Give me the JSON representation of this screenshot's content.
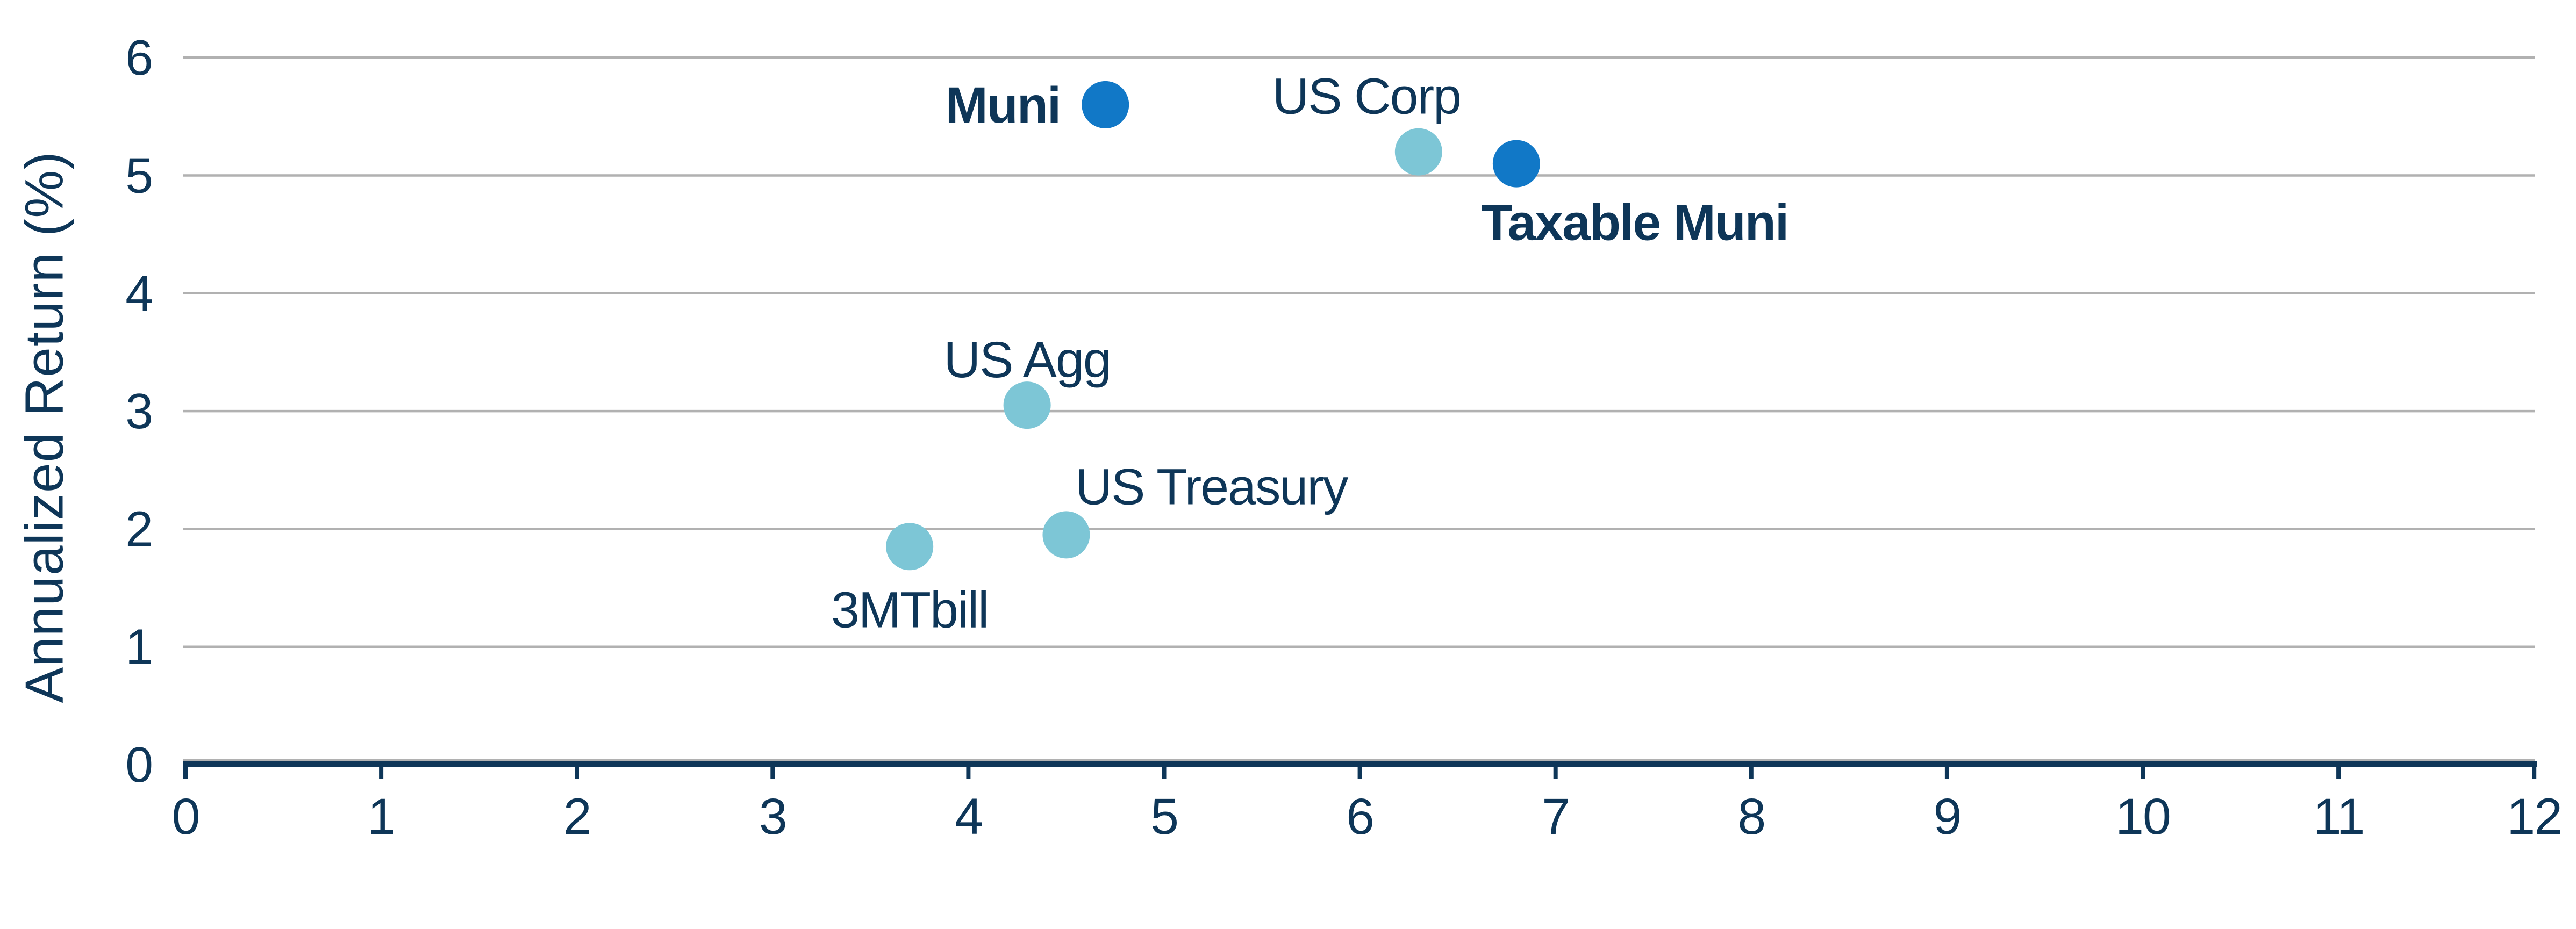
{
  "chart_data": {
    "type": "scatter",
    "title": "",
    "xlabel": "",
    "ylabel": "Annualized Return (%)",
    "xlim": [
      0,
      12
    ],
    "ylim": [
      0,
      6
    ],
    "x_ticks": [
      0,
      1,
      2,
      3,
      4,
      5,
      6,
      7,
      8,
      9,
      10,
      11,
      12
    ],
    "y_ticks": [
      0,
      1,
      2,
      3,
      4,
      5,
      6
    ],
    "grid": "horizontal-only",
    "legend_position": "none (each point labeled directly on plot)",
    "points": [
      {
        "name": "Muni",
        "x": 4.7,
        "y": 5.6,
        "color": "dark_blue",
        "bold": true,
        "label_pos": "left"
      },
      {
        "name": "US Corp",
        "x": 6.3,
        "y": 5.2,
        "color": "light_blue",
        "bold": false,
        "label_pos": "above-left"
      },
      {
        "name": "Taxable Muni",
        "x": 6.8,
        "y": 5.1,
        "color": "dark_blue",
        "bold": true,
        "label_pos": "below-right"
      },
      {
        "name": "US Agg",
        "x": 4.3,
        "y": 3.05,
        "color": "light_blue",
        "bold": false,
        "label_pos": "above"
      },
      {
        "name": "US Treasury",
        "x": 4.5,
        "y": 1.95,
        "color": "light_blue",
        "bold": false,
        "label_pos": "above-right"
      },
      {
        "name": "3MTbill",
        "x": 3.7,
        "y": 1.85,
        "color": "light_blue",
        "bold": false,
        "label_pos": "below"
      }
    ],
    "colors": {
      "dark_blue": "#1178c7",
      "light_blue": "#7dc6d6",
      "navy_text": "#0e3658",
      "gridline": "#b1b1b1"
    }
  }
}
